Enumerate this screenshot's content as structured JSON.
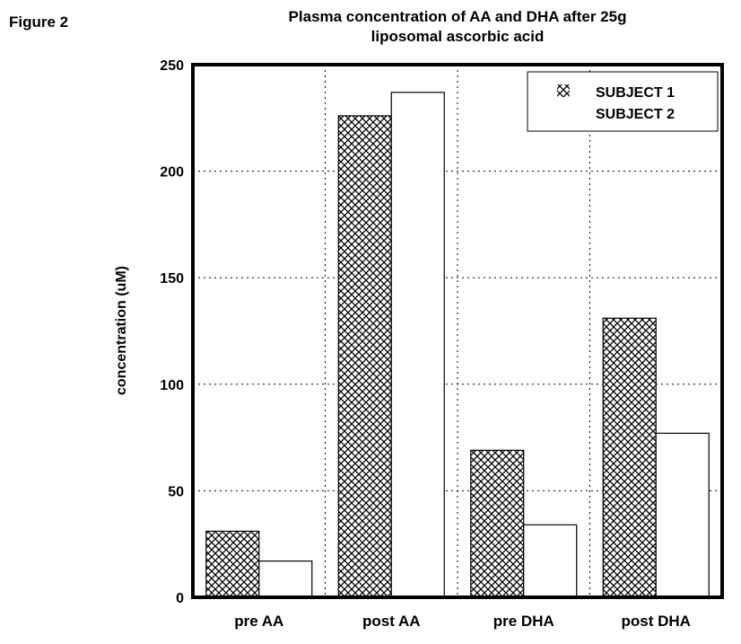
{
  "figure_label": "Figure 2",
  "chart_data": {
    "type": "bar",
    "title": "Plasma concentration of AA and DHA after 25g",
    "title_line2": "liposomal ascorbic acid",
    "xlabel": "",
    "ylabel": "concentration (uM)",
    "ylim": [
      0,
      250
    ],
    "yticks": [
      0,
      50,
      100,
      150,
      200,
      250
    ],
    "categories": [
      "pre AA",
      "post AA",
      "pre DHA",
      "post DHA"
    ],
    "series": [
      {
        "name": "SUBJECT 1",
        "pattern": "crosshatch",
        "values": [
          31,
          226,
          69,
          131
        ]
      },
      {
        "name": "SUBJECT 2",
        "pattern": "white",
        "values": [
          17,
          237,
          34,
          77
        ]
      }
    ],
    "grid": true,
    "legend": "top-right"
  }
}
